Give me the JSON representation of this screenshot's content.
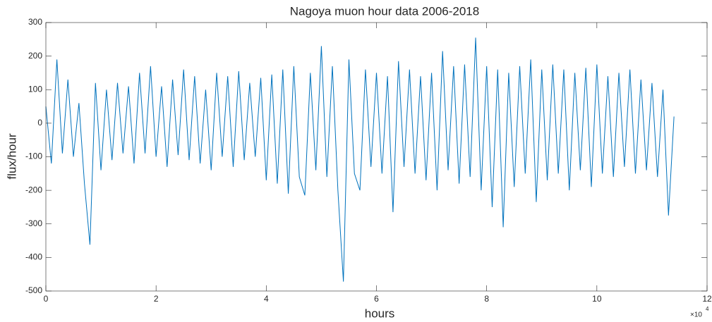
{
  "chart_data": {
    "type": "line",
    "title": "Nagoya muon hour data 2006-2018",
    "xlabel": "hours",
    "ylabel": "flux/hour",
    "x_multiplier": {
      "base": "×10",
      "exponent": "4"
    },
    "xlim": [
      0,
      120000
    ],
    "xticks": [
      0,
      {
        "value": 20000,
        "label": "2"
      },
      {
        "value": 40000,
        "label": "4"
      },
      {
        "value": 60000,
        "label": "6"
      },
      {
        "value": 80000,
        "label": "8"
      },
      {
        "value": 100000,
        "label": "10"
      },
      {
        "value": 120000,
        "label": "12"
      }
    ],
    "ylim": [
      -500,
      300
    ],
    "yticks": [
      -500,
      -400,
      -300,
      -200,
      -100,
      0,
      100,
      200,
      300
    ],
    "grid": false,
    "x": [
      0,
      1000,
      2000,
      3000,
      4000,
      5000,
      6000,
      7000,
      8000,
      9000,
      10000,
      11000,
      12000,
      13000,
      14000,
      15000,
      16000,
      17000,
      18000,
      19000,
      20000,
      21000,
      22000,
      23000,
      24000,
      25000,
      26000,
      27000,
      28000,
      29000,
      30000,
      31000,
      32000,
      33000,
      34000,
      35000,
      36000,
      37000,
      38000,
      39000,
      40000,
      41000,
      42000,
      43000,
      44000,
      45000,
      46000,
      47000,
      48000,
      49000,
      50000,
      51000,
      52000,
      53000,
      54000,
      55000,
      56000,
      57000,
      58000,
      59000,
      60000,
      61000,
      62000,
      63000,
      64000,
      65000,
      66000,
      67000,
      68000,
      69000,
      70000,
      71000,
      72000,
      73000,
      74000,
      75000,
      76000,
      77000,
      78000,
      79000,
      80000,
      81000,
      82000,
      83000,
      84000,
      85000,
      86000,
      87000,
      88000,
      89000,
      90000,
      91000,
      92000,
      93000,
      94000,
      95000,
      96000,
      97000,
      98000,
      99000,
      100000,
      101000,
      102000,
      103000,
      104000,
      105000,
      106000,
      107000,
      108000,
      109000,
      110000,
      111000,
      112000,
      113000,
      114000
    ],
    "series": [
      {
        "color": "#0072bd",
        "values": [
          50,
          -120,
          190,
          -90,
          130,
          -100,
          60,
          -180,
          -362,
          120,
          -140,
          100,
          -110,
          120,
          -90,
          110,
          -120,
          150,
          -90,
          170,
          -100,
          110,
          -130,
          130,
          -95,
          160,
          -110,
          140,
          -120,
          100,
          -140,
          150,
          -100,
          140,
          -130,
          155,
          -110,
          120,
          -100,
          135,
          -170,
          145,
          -180,
          160,
          -210,
          170,
          -160,
          -215,
          150,
          -140,
          230,
          -160,
          170,
          -200,
          -472,
          190,
          -150,
          -200,
          160,
          -130,
          150,
          -150,
          140,
          -265,
          185,
          -130,
          160,
          -150,
          140,
          -170,
          150,
          -200,
          215,
          -140,
          170,
          -180,
          175,
          -160,
          255,
          -200,
          170,
          -250,
          160,
          -310,
          150,
          -190,
          170,
          -150,
          190,
          -235,
          160,
          -170,
          175,
          -150,
          160,
          -200,
          150,
          -140,
          165,
          -190,
          175,
          -150,
          140,
          -160,
          150,
          -130,
          160,
          -150,
          130,
          -140,
          120,
          -160,
          100,
          -275,
          20
        ]
      }
    ]
  }
}
